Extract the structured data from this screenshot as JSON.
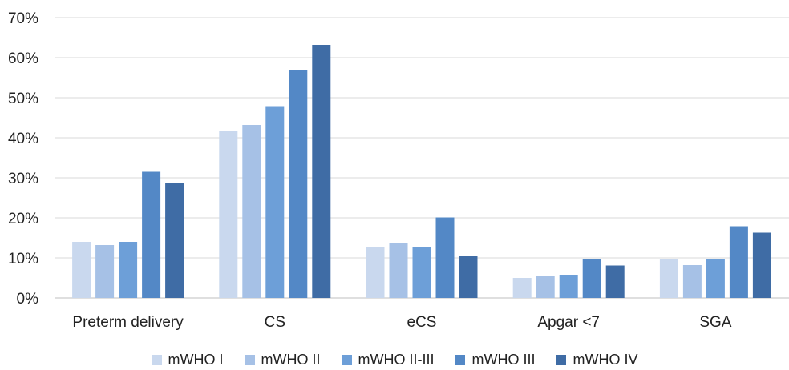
{
  "chart_data": {
    "type": "bar",
    "title": "",
    "xlabel": "",
    "ylabel": "",
    "categories": [
      "Preterm delivery",
      "CS",
      "eCS",
      "Apgar <7",
      "SGA"
    ],
    "ylim": [
      0,
      70
    ],
    "yticks": [
      0,
      10,
      20,
      30,
      40,
      50,
      60,
      70
    ],
    "ytick_labels": [
      "0%",
      "10%",
      "20%",
      "30%",
      "40%",
      "50%",
      "60%",
      "70%"
    ],
    "grid": true,
    "legend_position": "bottom",
    "series": [
      {
        "name": "mWHO I",
        "color": "#c9d8ee",
        "values": [
          14,
          41.7,
          12.8,
          5,
          9.8
        ]
      },
      {
        "name": "mWHO II",
        "color": "#a6c1e6",
        "values": [
          13.2,
          43.2,
          13.6,
          5.4,
          8.2
        ]
      },
      {
        "name": "mWHO II-III",
        "color": "#6d9fd8",
        "values": [
          14,
          47.9,
          12.8,
          5.7,
          9.8
        ]
      },
      {
        "name": "mWHO III",
        "color": "#5388c6",
        "values": [
          31.5,
          57,
          20.1,
          9.6,
          17.9
        ]
      },
      {
        "name": "mWHO IV",
        "color": "#3f6ca5",
        "values": [
          28.8,
          63.2,
          10.4,
          8.1,
          16.3
        ]
      }
    ]
  }
}
